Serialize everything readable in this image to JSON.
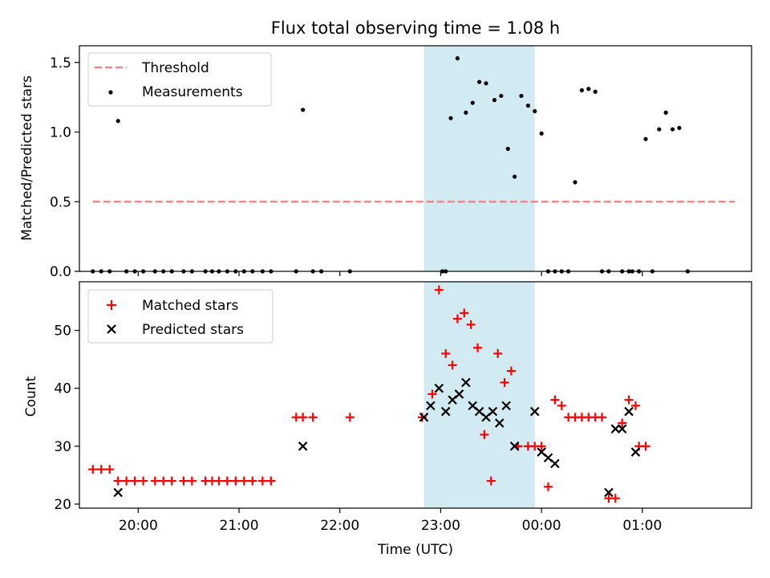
{
  "title": "Flux total observing time = 1.08 h",
  "colors": {
    "threshold": "#f08080",
    "measurement": "#000000",
    "matched": "#ff0000",
    "predicted": "#000000",
    "span": "#add8e6"
  },
  "chart_data": [
    {
      "type": "scatter",
      "panel": "top",
      "ylabel": "Matched/Predicted stars",
      "ylim": [
        0,
        1.62
      ],
      "yticks": [
        0.0,
        0.5,
        1.0,
        1.5
      ],
      "ytick_labels": [
        "0.0",
        "0.5",
        "1.0",
        "1.5"
      ],
      "xlim": [
        "19:25",
        "02:05"
      ],
      "highlight_span": {
        "from": "22:50",
        "to": "23:56"
      },
      "legend": {
        "position": "top-left",
        "entries": [
          "Threshold",
          "Measurements"
        ]
      },
      "series": [
        {
          "name": "Threshold",
          "style": "dashed-line",
          "x": [
            "19:33",
            "01:55"
          ],
          "y": [
            0.5,
            0.5
          ]
        },
        {
          "name": "Measurements",
          "style": "dot",
          "points": [
            [
              "19:33",
              0
            ],
            [
              "19:38",
              0
            ],
            [
              "19:43",
              0
            ],
            [
              "19:48",
              1.08
            ],
            [
              "19:53",
              0
            ],
            [
              "19:58",
              0
            ],
            [
              "20:03",
              0
            ],
            [
              "20:10",
              0
            ],
            [
              "20:15",
              0
            ],
            [
              "20:20",
              0
            ],
            [
              "20:27",
              0
            ],
            [
              "20:32",
              0
            ],
            [
              "20:40",
              0
            ],
            [
              "20:44",
              0
            ],
            [
              "20:48",
              0
            ],
            [
              "20:53",
              0
            ],
            [
              "20:58",
              0
            ],
            [
              "21:03",
              0
            ],
            [
              "21:08",
              0
            ],
            [
              "21:14",
              0
            ],
            [
              "21:19",
              0
            ],
            [
              "21:34",
              0
            ],
            [
              "21:38",
              1.16
            ],
            [
              "21:44",
              0
            ],
            [
              "21:49",
              0
            ],
            [
              "22:06",
              0
            ],
            [
              "23:01",
              0
            ],
            [
              "23:03",
              0
            ],
            [
              "23:06",
              1.1
            ],
            [
              "23:10",
              1.53
            ],
            [
              "23:15",
              1.14
            ],
            [
              "23:19",
              1.21
            ],
            [
              "23:23",
              1.36
            ],
            [
              "23:27",
              1.35
            ],
            [
              "23:32",
              1.23
            ],
            [
              "23:36",
              1.26
            ],
            [
              "23:40",
              0.88
            ],
            [
              "23:44",
              0.68
            ],
            [
              "23:48",
              1.26
            ],
            [
              "23:52",
              1.19
            ],
            [
              "23:56",
              1.15
            ],
            [
              "00:00",
              0.99
            ],
            [
              "00:04",
              0
            ],
            [
              "00:08",
              0
            ],
            [
              "00:12",
              0
            ],
            [
              "00:16",
              0
            ],
            [
              "00:20",
              0.64
            ],
            [
              "00:24",
              1.3
            ],
            [
              "00:28",
              1.31
            ],
            [
              "00:32",
              1.29
            ],
            [
              "00:36",
              0
            ],
            [
              "00:40",
              0
            ],
            [
              "00:48",
              0
            ],
            [
              "00:52",
              0
            ],
            [
              "00:54",
              0
            ],
            [
              "00:58",
              0
            ],
            [
              "01:02",
              0.95
            ],
            [
              "01:06",
              0
            ],
            [
              "01:10",
              1.02
            ],
            [
              "01:14",
              1.14
            ],
            [
              "01:18",
              1.02
            ],
            [
              "01:22",
              1.03
            ],
            [
              "01:27",
              0
            ]
          ]
        }
      ]
    },
    {
      "type": "scatter",
      "panel": "bottom",
      "xlabel": "Time (UTC)",
      "ylabel": "Count",
      "ylim": [
        19.3,
        58.4
      ],
      "yticks": [
        20,
        30,
        40,
        50
      ],
      "ytick_labels": [
        "20",
        "30",
        "40",
        "50"
      ],
      "xlim": [
        "19:25",
        "02:05"
      ],
      "xticks": [
        "20:00",
        "21:00",
        "22:00",
        "23:00",
        "00:00",
        "01:00"
      ],
      "highlight_span": {
        "from": "22:50",
        "to": "23:56"
      },
      "legend": {
        "position": "top-left",
        "entries": [
          "Matched stars",
          "Predicted stars"
        ]
      },
      "series": [
        {
          "name": "Matched stars",
          "marker": "+",
          "points": [
            [
              "19:33",
              26
            ],
            [
              "19:38",
              26
            ],
            [
              "19:43",
              26
            ],
            [
              "19:48",
              24
            ],
            [
              "19:53",
              24
            ],
            [
              "19:58",
              24
            ],
            [
              "20:03",
              24
            ],
            [
              "20:10",
              24
            ],
            [
              "20:15",
              24
            ],
            [
              "20:20",
              24
            ],
            [
              "20:27",
              24
            ],
            [
              "20:32",
              24
            ],
            [
              "20:40",
              24
            ],
            [
              "20:44",
              24
            ],
            [
              "20:48",
              24
            ],
            [
              "20:53",
              24
            ],
            [
              "20:58",
              24
            ],
            [
              "21:03",
              24
            ],
            [
              "21:08",
              24
            ],
            [
              "21:14",
              24
            ],
            [
              "21:19",
              24
            ],
            [
              "21:34",
              35
            ],
            [
              "21:38",
              35
            ],
            [
              "21:44",
              35
            ],
            [
              "22:06",
              35
            ],
            [
              "22:49",
              35
            ],
            [
              "22:55",
              39
            ],
            [
              "22:59",
              57
            ],
            [
              "23:03",
              46
            ],
            [
              "23:07",
              44
            ],
            [
              "23:10",
              52
            ],
            [
              "23:14",
              53
            ],
            [
              "23:18",
              51
            ],
            [
              "23:22",
              47
            ],
            [
              "23:26",
              32
            ],
            [
              "23:30",
              24
            ],
            [
              "23:34",
              46
            ],
            [
              "23:38",
              41
            ],
            [
              "23:42",
              43
            ],
            [
              "23:46",
              30
            ],
            [
              "23:52",
              30
            ],
            [
              "23:56",
              30
            ],
            [
              "00:00",
              30
            ],
            [
              "00:04",
              23
            ],
            [
              "00:08",
              38
            ],
            [
              "00:12",
              37
            ],
            [
              "00:16",
              35
            ],
            [
              "00:20",
              35
            ],
            [
              "00:24",
              35
            ],
            [
              "00:28",
              35
            ],
            [
              "00:32",
              35
            ],
            [
              "00:36",
              35
            ],
            [
              "00:40",
              21
            ],
            [
              "00:44",
              21
            ],
            [
              "00:48",
              34
            ],
            [
              "00:52",
              38
            ],
            [
              "00:56",
              37
            ],
            [
              "00:58",
              30
            ],
            [
              "01:02",
              30
            ]
          ]
        },
        {
          "name": "Predicted stars",
          "marker": "x",
          "points": [
            [
              "19:48",
              22
            ],
            [
              "21:38",
              30
            ],
            [
              "22:50",
              35
            ],
            [
              "22:54",
              37
            ],
            [
              "22:59",
              40
            ],
            [
              "23:03",
              36
            ],
            [
              "23:07",
              38
            ],
            [
              "23:11",
              39
            ],
            [
              "23:15",
              41
            ],
            [
              "23:19",
              37
            ],
            [
              "23:23",
              36
            ],
            [
              "23:27",
              35
            ],
            [
              "23:31",
              36
            ],
            [
              "23:35",
              34
            ],
            [
              "23:39",
              37
            ],
            [
              "23:44",
              30
            ],
            [
              "23:56",
              36
            ],
            [
              "00:00",
              29
            ],
            [
              "00:04",
              28
            ],
            [
              "00:08",
              27
            ],
            [
              "00:40",
              22
            ],
            [
              "00:44",
              33
            ],
            [
              "00:48",
              33
            ],
            [
              "00:52",
              36
            ],
            [
              "00:56",
              29
            ]
          ]
        }
      ]
    }
  ]
}
